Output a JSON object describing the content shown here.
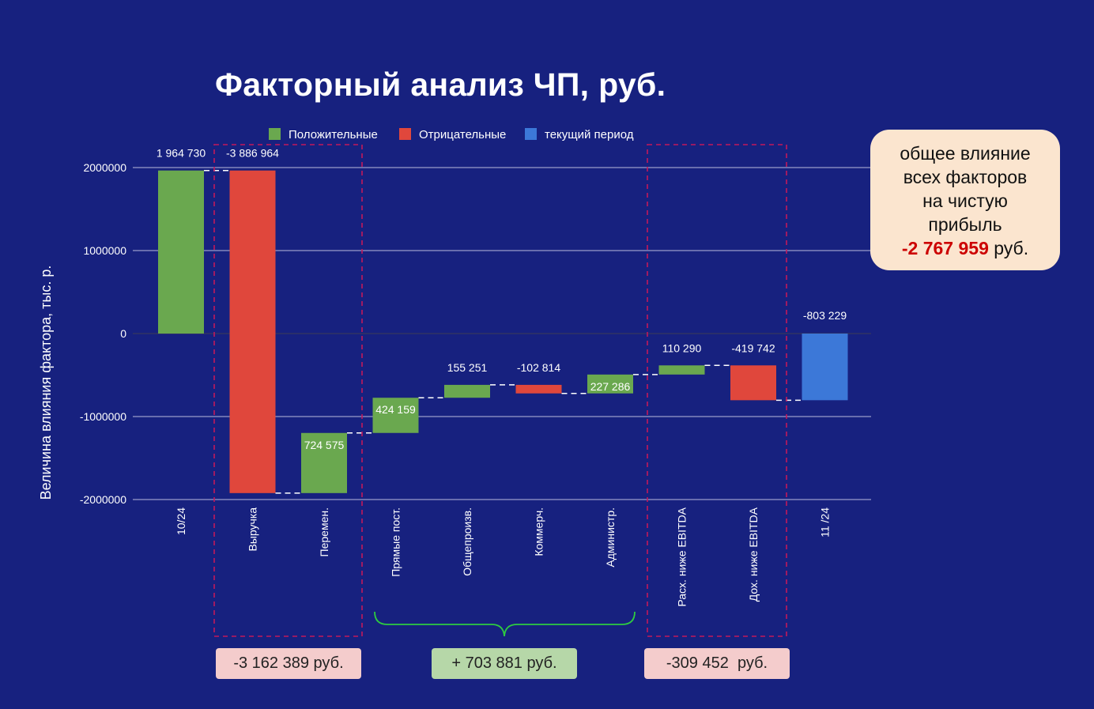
{
  "title": "Факторный анализ ЧП, руб.",
  "legend": [
    {
      "label": "Положительные",
      "color": "#6aa84f"
    },
    {
      "label": "Отрицательные",
      "color": "#e0473c"
    },
    {
      "label": "текущий период",
      "color": "#3c78d8"
    }
  ],
  "callout": {
    "line1": "общее влияние",
    "line2": "всех факторов",
    "line3": "на чистую",
    "line4": "прибыль",
    "value": "-2 767 959",
    "unit": " руб."
  },
  "group_sums": {
    "revenue_group": "-3 162 389 руб.",
    "costs_group": "+ 703 881 руб.",
    "below_ebitda_group": "-309 452  руб."
  },
  "colors": {
    "background": "#17217f",
    "positive": "#6aa84f",
    "negative": "#e0473c",
    "current": "#3c78d8",
    "group_border": "#c2185b",
    "brace": "#2ecc40"
  },
  "chart_data": {
    "type": "waterfall",
    "ylabel": "Величина влияния фактора, тыс. р.",
    "ylim": [
      -2000000,
      2000000
    ],
    "yticks": [
      {
        "value": 2000000,
        "label": "2000000"
      },
      {
        "value": 1000000,
        "label": "1000000"
      },
      {
        "value": 0,
        "label": "0"
      },
      {
        "value": -1000000,
        "label": "-1000000"
      },
      {
        "value": -2000000,
        "label": "-2000000"
      }
    ],
    "grid": true,
    "legend_position": "top",
    "bars": [
      {
        "category": "10/24",
        "value": 1964730,
        "label": "1 964 730",
        "kind": "total",
        "color": "positive",
        "label_pos": "above"
      },
      {
        "category": "Выручка",
        "value": -3886964,
        "label": "-3 886 964",
        "kind": "delta",
        "color": "negative",
        "label_pos": "above"
      },
      {
        "category": "Перемен.",
        "value": 724575,
        "label": "724 575",
        "kind": "delta",
        "color": "positive",
        "label_pos": "inside"
      },
      {
        "category": "Прямые пост.",
        "value": 424159,
        "label": "424 159",
        "kind": "delta",
        "color": "positive",
        "label_pos": "inside"
      },
      {
        "category": "Общепроизв.",
        "value": 155251,
        "label": "155 251",
        "kind": "delta",
        "color": "positive",
        "label_pos": "above"
      },
      {
        "category": "Коммерч.",
        "value": -102814,
        "label": "-102 814",
        "kind": "delta",
        "color": "negative",
        "label_pos": "above"
      },
      {
        "category": "Администр.",
        "value": 227286,
        "label": "227 286",
        "kind": "delta",
        "color": "positive",
        "label_pos": "inside"
      },
      {
        "category": "Расх. ниже EBITDA",
        "value": 110290,
        "label": "110 290",
        "kind": "delta",
        "color": "positive",
        "label_pos": "above"
      },
      {
        "category": "Дох. ниже EBITDA",
        "value": -419742,
        "label": "-419 742",
        "kind": "delta",
        "color": "negative",
        "label_pos": "above"
      },
      {
        "category": "11 /24",
        "value": -803229,
        "label": "-803 229",
        "kind": "total",
        "color": "current",
        "label_pos": "above"
      }
    ]
  }
}
